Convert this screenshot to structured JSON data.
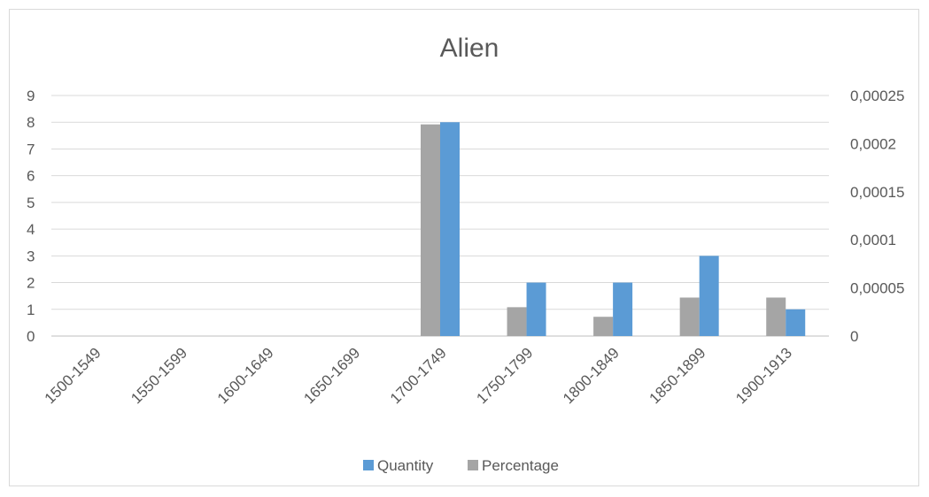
{
  "chart_data": {
    "type": "bar",
    "title": "Alien",
    "categories": [
      "1500-1549",
      "1550-1599",
      "1600-1649",
      "1650-1699",
      "1700-1749",
      "1750-1799",
      "1800-1849",
      "1850-1899",
      "1900-1913"
    ],
    "series": [
      {
        "name": "Percentage",
        "axis": "right",
        "color": "#a5a5a5",
        "values": [
          0,
          0,
          0,
          0,
          0.00022,
          3e-05,
          2e-05,
          4e-05,
          4e-05
        ]
      },
      {
        "name": "Quantity",
        "axis": "left",
        "color": "#5b9bd5",
        "values": [
          0,
          0,
          0,
          0,
          8,
          2,
          2,
          3,
          1
        ]
      }
    ],
    "y_left": {
      "min": 0,
      "max": 9,
      "ticks": [
        "0",
        "1",
        "2",
        "3",
        "4",
        "5",
        "6",
        "7",
        "8",
        "9"
      ]
    },
    "y_right": {
      "min": 0,
      "max": 0.00025,
      "ticks": [
        "0",
        "0,00005",
        "0,0001",
        "0,00015",
        "0,0002",
        "0,00025"
      ]
    },
    "grid": true,
    "legend": {
      "position": "bottom",
      "entries": [
        "Quantity",
        "Percentage"
      ]
    }
  }
}
